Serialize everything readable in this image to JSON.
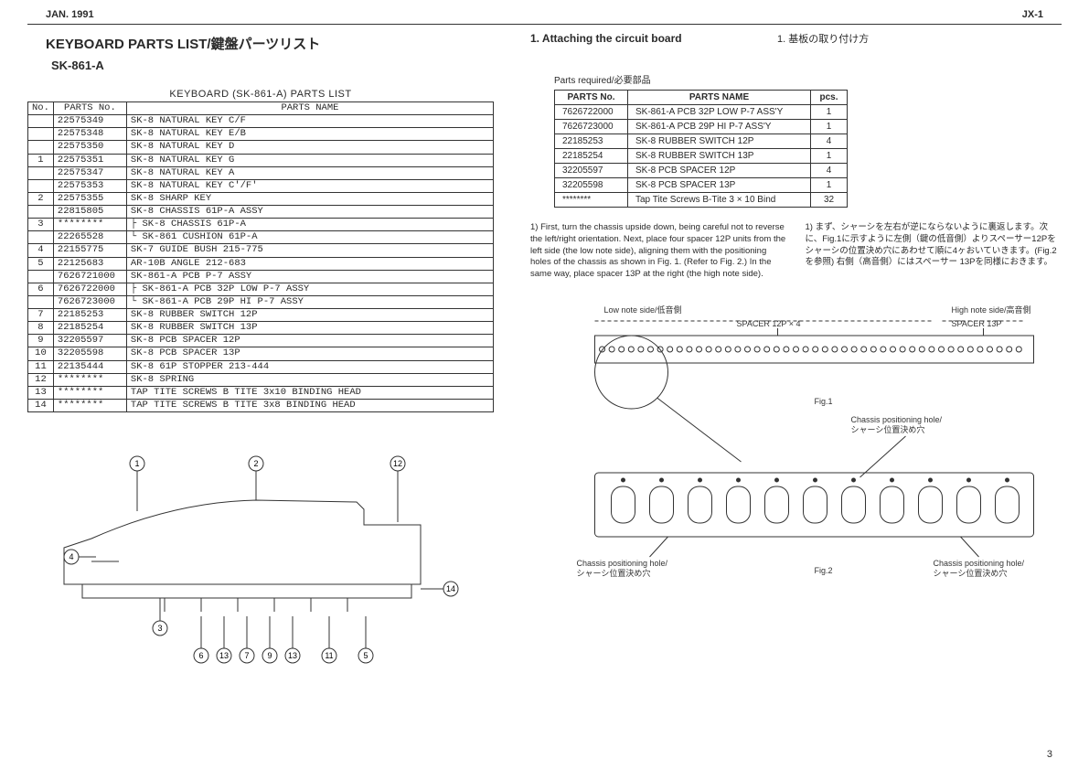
{
  "header": {
    "left": "JAN. 1991",
    "right": "JX-1"
  },
  "titles": {
    "main": "KEYBOARD PARTS LIST/鍵盤パーツリスト",
    "sub": "SK-861-A",
    "table_caption": "KEYBOARD   (SK-861-A)   PARTS LIST"
  },
  "parts_table": {
    "headers": [
      "No.",
      "PARTS No.",
      "PARTS NAME"
    ],
    "rows": [
      {
        "no": "",
        "pn": "22575349",
        "name": "SK-8 NATURAL KEY   C/F"
      },
      {
        "no": "",
        "pn": "22575348",
        "name": "SK-8 NATURAL KEY   E/B"
      },
      {
        "no": "",
        "pn": "22575350",
        "name": "SK-8 NATURAL KEY   D"
      },
      {
        "no": "1",
        "pn": "22575351",
        "name": "SK-8 NATURAL KEY   G"
      },
      {
        "no": "",
        "pn": "22575347",
        "name": "SK-8 NATURAL KEY   A"
      },
      {
        "no": "",
        "pn": "22575353",
        "name": "SK-8 NATURAL KEY   C'/F'"
      },
      {
        "no": "2",
        "pn": "22575355",
        "name": "SK-8 SHARP KEY"
      },
      {
        "no": "",
        "pn": "22815805",
        "name": "SK-8 CHASSIS 61P-A ASSY"
      },
      {
        "no": "3",
        "pn": "********",
        "name": "├ SK-8 CHASSIS 61P-A"
      },
      {
        "no": "",
        "pn": "22265528",
        "name": "└ SK-861 CUSHION 61P-A"
      },
      {
        "no": "4",
        "pn": "22155775",
        "name": "SK-7 GUIDE BUSH   215-775"
      },
      {
        "no": "5",
        "pn": "22125683",
        "name": "AR-10B ANGLE      212-683"
      },
      {
        "no": "",
        "pn": "7626721000",
        "name": "SK-861-A PCB P-7 ASSY"
      },
      {
        "no": "6",
        "pn": "7626722000",
        "name": "├ SK-861-A PCB 32P LOW P-7 ASSY"
      },
      {
        "no": "",
        "pn": "7626723000",
        "name": "└ SK-861-A PCB 29P HI  P-7 ASSY"
      },
      {
        "no": "7",
        "pn": "22185253",
        "name": "SK-8 RUBBER SWITCH 12P"
      },
      {
        "no": "8",
        "pn": "22185254",
        "name": "SK-8 RUBBER SWITCH 13P"
      },
      {
        "no": "9",
        "pn": "32205597",
        "name": "SK-8 PCB SPACER 12P"
      },
      {
        "no": "10",
        "pn": "32205598",
        "name": "SK-8 PCB SPACER 13P"
      },
      {
        "no": "11",
        "pn": "22135444",
        "name": "SK-8 61P STOPPER 213-444"
      },
      {
        "no": "12",
        "pn": "********",
        "name": "SK-8 SPRING"
      },
      {
        "no": "13",
        "pn": "********",
        "name": "TAP TITE SCREWS B TITE 3x10 BINDING HEAD"
      },
      {
        "no": "14",
        "pn": "********",
        "name": "TAP TITE SCREWS B TITE 3x8  BINDING HEAD"
      }
    ]
  },
  "right": {
    "heading_en": "1. Attaching the circuit board",
    "heading_jp": "1. 基板の取り付け方",
    "req_caption": "Parts required/必要部品",
    "req_headers": [
      "PARTS No.",
      "PARTS NAME",
      "pcs."
    ],
    "req_rows": [
      {
        "pn": "7626722000",
        "name": "SK-861-A PCB 32P LOW P-7 ASS'Y",
        "pcs": "1"
      },
      {
        "pn": "7626723000",
        "name": "SK-861-A PCB 29P HI P-7 ASS'Y",
        "pcs": "1"
      },
      {
        "pn": "22185253",
        "name": "SK-8 RUBBER SWITCH 12P",
        "pcs": "4"
      },
      {
        "pn": "22185254",
        "name": "SK-8 RUBBER SWITCH 13P",
        "pcs": "1"
      },
      {
        "pn": "32205597",
        "name": "SK-8 PCB SPACER 12P",
        "pcs": "4"
      },
      {
        "pn": "32205598",
        "name": "SK-8 PCB SPACER 13P",
        "pcs": "1"
      },
      {
        "pn": "********",
        "name": "Tap Tite Screws B-Tite 3 × 10 Bind",
        "pcs": "32"
      }
    ],
    "instr_en": "1) First, turn the chassis upside down, being careful not to reverse the left/right orientation. Next, place four spacer 12P units from the left side (the low note side), aligning them with the positioning holes of the chassis as shown in Fig. 1. (Refer to Fig. 2.) In the same way, place spacer 13P at the right (the high note side).",
    "instr_jp": "1) まず、シャーシを左右が逆にならないように裏返します。次に、Fig.1に示すように左側（鍵の低音側）よりスペーサー12Pをシャーシの位置決め穴にあわせて順に4ヶおいていきます。(Fig.2を参照)  右側（高音側）にはスペーサー 13Pを同様におきます。"
  },
  "diagram_left": {
    "callouts": [
      "1",
      "2",
      "12",
      "4",
      "3",
      "14",
      "6",
      "13",
      "7",
      "9",
      "13",
      "11",
      "5"
    ]
  },
  "diagram_right": {
    "low_label": "Low note side/低音側",
    "high_label": "High note side/高音側",
    "spacer12": "SPACER 12P × 4",
    "spacer13": "SPACER 13P",
    "fig1": "Fig.1",
    "fig2": "Fig.2",
    "chassis_label": "Chassis positioning hole/\nシャーシ位置決め穴"
  },
  "page_no": "3",
  "colors": {
    "text": "#2a2a2a",
    "border": "#333333",
    "bg": "#ffffff"
  }
}
